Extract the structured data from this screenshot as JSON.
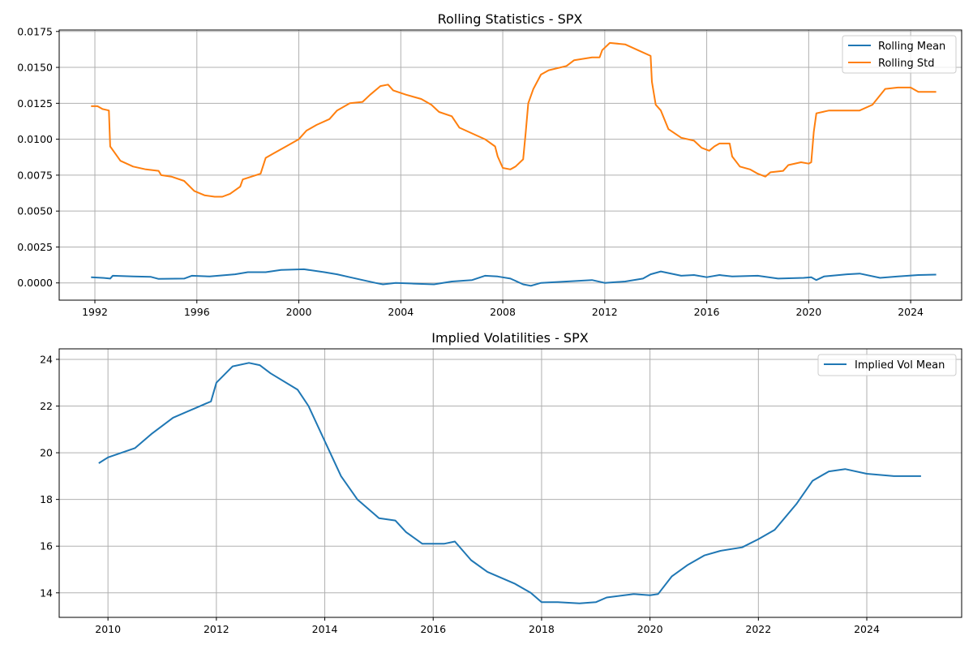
{
  "colors": {
    "blue": "#1f77b4",
    "orange": "#ff7f0e",
    "grid": "#b0b0b0"
  },
  "chart_data": [
    {
      "type": "line",
      "title": "Rolling Statistics - SPX",
      "xlabel": "",
      "ylabel": "",
      "xlim": [
        1990.6,
        2026.0
      ],
      "ylim": [
        -0.0012,
        0.0176
      ],
      "xticks": [
        1992,
        1996,
        2000,
        2004,
        2008,
        2012,
        2016,
        2020,
        2024
      ],
      "xtick_labels": [
        "1992",
        "1996",
        "2000",
        "2004",
        "2008",
        "2012",
        "2016",
        "2020",
        "2024"
      ],
      "yticks": [
        0.0,
        0.0025,
        0.005,
        0.0075,
        0.01,
        0.0125,
        0.015,
        0.0175
      ],
      "ytick_labels": [
        "0.0000",
        "0.0025",
        "0.0050",
        "0.0075",
        "0.0100",
        "0.0125",
        "0.0150",
        "0.0175"
      ],
      "grid": true,
      "legend_position": "top-right",
      "series": [
        {
          "name": "Rolling Mean",
          "color": "#1f77b4",
          "points": [
            [
              1991.85,
              0.0004
            ],
            [
              1992.3,
              0.00035
            ],
            [
              1992.6,
              0.0003
            ],
            [
              1992.7,
              0.0005
            ],
            [
              1993.5,
              0.00045
            ],
            [
              1994.2,
              0.00042
            ],
            [
              1994.5,
              0.00028
            ],
            [
              1995.5,
              0.0003
            ],
            [
              1995.8,
              0.0005
            ],
            [
              1996.5,
              0.00045
            ],
            [
              1997.5,
              0.0006
            ],
            [
              1998.0,
              0.00075
            ],
            [
              1998.7,
              0.00075
            ],
            [
              1999.3,
              0.0009
            ],
            [
              2000.2,
              0.00095
            ],
            [
              2001.0,
              0.00075
            ],
            [
              2001.5,
              0.0006
            ],
            [
              2002.0,
              0.0004
            ],
            [
              2002.5,
              0.0002
            ],
            [
              2003.0,
              0.0
            ],
            [
              2003.3,
              -0.0001
            ],
            [
              2003.8,
              0.0
            ],
            [
              2004.5,
              -5e-05
            ],
            [
              2005.3,
              -0.0001
            ],
            [
              2006.0,
              0.0001
            ],
            [
              2006.8,
              0.0002
            ],
            [
              2007.3,
              0.0005
            ],
            [
              2007.8,
              0.00045
            ],
            [
              2008.3,
              0.0003
            ],
            [
              2008.8,
              -0.0001
            ],
            [
              2009.1,
              -0.0002
            ],
            [
              2009.5,
              0.0
            ],
            [
              2010.5,
              0.0001
            ],
            [
              2011.5,
              0.0002
            ],
            [
              2012.0,
              0.0
            ],
            [
              2012.8,
              0.0001
            ],
            [
              2013.5,
              0.0003
            ],
            [
              2013.8,
              0.0006
            ],
            [
              2014.2,
              0.0008
            ],
            [
              2015.0,
              0.0005
            ],
            [
              2015.5,
              0.00055
            ],
            [
              2016.0,
              0.0004
            ],
            [
              2016.5,
              0.00055
            ],
            [
              2017.0,
              0.00045
            ],
            [
              2018.0,
              0.0005
            ],
            [
              2018.8,
              0.0003
            ],
            [
              2019.8,
              0.00035
            ],
            [
              2020.1,
              0.0004
            ],
            [
              2020.3,
              0.0002
            ],
            [
              2020.6,
              0.00045
            ],
            [
              2021.5,
              0.0006
            ],
            [
              2022.0,
              0.00065
            ],
            [
              2022.8,
              0.00035
            ],
            [
              2023.5,
              0.00045
            ],
            [
              2024.3,
              0.00055
            ],
            [
              2025.0,
              0.00058
            ]
          ]
        },
        {
          "name": "Rolling Std",
          "color": "#ff7f0e",
          "points": [
            [
              1991.85,
              0.0123
            ],
            [
              1992.1,
              0.0123
            ],
            [
              1992.3,
              0.0121
            ],
            [
              1992.55,
              0.012
            ],
            [
              1992.6,
              0.0095
            ],
            [
              1992.8,
              0.009
            ],
            [
              1993.0,
              0.0085
            ],
            [
              1993.5,
              0.0081
            ],
            [
              1994.0,
              0.0079
            ],
            [
              1994.5,
              0.0078
            ],
            [
              1994.6,
              0.0075
            ],
            [
              1995.0,
              0.0074
            ],
            [
              1995.5,
              0.0071
            ],
            [
              1995.9,
              0.0064
            ],
            [
              1996.3,
              0.0061
            ],
            [
              1996.7,
              0.006
            ],
            [
              1997.0,
              0.006
            ],
            [
              1997.3,
              0.0062
            ],
            [
              1997.7,
              0.0067
            ],
            [
              1997.8,
              0.0072
            ],
            [
              1998.5,
              0.0076
            ],
            [
              1998.7,
              0.0087
            ],
            [
              1999.0,
              0.009
            ],
            [
              1999.5,
              0.0095
            ],
            [
              2000.0,
              0.01
            ],
            [
              2000.3,
              0.0106
            ],
            [
              2000.7,
              0.011
            ],
            [
              2001.2,
              0.0114
            ],
            [
              2001.5,
              0.012
            ],
            [
              2002.0,
              0.0125
            ],
            [
              2002.5,
              0.0126
            ],
            [
              2002.8,
              0.0131
            ],
            [
              2003.2,
              0.0137
            ],
            [
              2003.5,
              0.0138
            ],
            [
              2003.7,
              0.0134
            ],
            [
              2004.2,
              0.0131
            ],
            [
              2004.8,
              0.0128
            ],
            [
              2005.2,
              0.0124
            ],
            [
              2005.5,
              0.0119
            ],
            [
              2006.0,
              0.0116
            ],
            [
              2006.3,
              0.0108
            ],
            [
              2006.8,
              0.0104
            ],
            [
              2007.3,
              0.01
            ],
            [
              2007.7,
              0.0095
            ],
            [
              2007.8,
              0.0088
            ],
            [
              2008.0,
              0.008
            ],
            [
              2008.3,
              0.0079
            ],
            [
              2008.5,
              0.0081
            ],
            [
              2008.8,
              0.0086
            ],
            [
              2008.9,
              0.0105
            ],
            [
              2009.0,
              0.0125
            ],
            [
              2009.2,
              0.0135
            ],
            [
              2009.5,
              0.0145
            ],
            [
              2009.8,
              0.0148
            ],
            [
              2010.5,
              0.0151
            ],
            [
              2010.8,
              0.0155
            ],
            [
              2011.5,
              0.0157
            ],
            [
              2011.8,
              0.0157
            ],
            [
              2011.9,
              0.0162
            ],
            [
              2012.2,
              0.0167
            ],
            [
              2012.8,
              0.0166
            ],
            [
              2013.3,
              0.0162
            ],
            [
              2013.8,
              0.0158
            ],
            [
              2013.85,
              0.014
            ],
            [
              2014.0,
              0.0124
            ],
            [
              2014.2,
              0.012
            ],
            [
              2014.5,
              0.0107
            ],
            [
              2015.0,
              0.0101
            ],
            [
              2015.5,
              0.0099
            ],
            [
              2015.8,
              0.0094
            ],
            [
              2016.1,
              0.0092
            ],
            [
              2016.3,
              0.0095
            ],
            [
              2016.5,
              0.0097
            ],
            [
              2016.9,
              0.0097
            ],
            [
              2017.0,
              0.0088
            ],
            [
              2017.3,
              0.0081
            ],
            [
              2017.7,
              0.0079
            ],
            [
              2018.0,
              0.0076
            ],
            [
              2018.3,
              0.0074
            ],
            [
              2018.5,
              0.0077
            ],
            [
              2019.0,
              0.0078
            ],
            [
              2019.2,
              0.0082
            ],
            [
              2019.7,
              0.0084
            ],
            [
              2020.0,
              0.0083
            ],
            [
              2020.1,
              0.0084
            ],
            [
              2020.2,
              0.0105
            ],
            [
              2020.3,
              0.0118
            ],
            [
              2020.8,
              0.012
            ],
            [
              2021.5,
              0.012
            ],
            [
              2022.0,
              0.012
            ],
            [
              2022.5,
              0.0124
            ],
            [
              2023.0,
              0.0135
            ],
            [
              2023.5,
              0.0136
            ],
            [
              2024.0,
              0.0136
            ],
            [
              2024.3,
              0.0133
            ],
            [
              2024.8,
              0.0133
            ],
            [
              2025.0,
              0.0133
            ]
          ]
        }
      ]
    },
    {
      "type": "line",
      "title": "Implied Volatilities - SPX",
      "xlabel": "",
      "ylabel": "",
      "xlim": [
        2009.1,
        2025.75
      ],
      "ylim": [
        12.95,
        24.45
      ],
      "xticks": [
        2010,
        2012,
        2014,
        2016,
        2018,
        2020,
        2022,
        2024
      ],
      "xtick_labels": [
        "2010",
        "2012",
        "2014",
        "2016",
        "2018",
        "2020",
        "2022",
        "2024"
      ],
      "yticks": [
        14,
        16,
        18,
        20,
        22,
        24
      ],
      "ytick_labels": [
        "14",
        "16",
        "18",
        "20",
        "22",
        "24"
      ],
      "grid": true,
      "legend_position": "top-right",
      "series": [
        {
          "name": "Implied Vol Mean",
          "color": "#1f77b4",
          "points": [
            [
              2009.83,
              19.55
            ],
            [
              2010.0,
              19.8
            ],
            [
              2010.5,
              20.2
            ],
            [
              2010.8,
              20.8
            ],
            [
              2011.2,
              21.5
            ],
            [
              2011.6,
              21.9
            ],
            [
              2011.9,
              22.2
            ],
            [
              2012.0,
              23.0
            ],
            [
              2012.3,
              23.7
            ],
            [
              2012.6,
              23.85
            ],
            [
              2012.8,
              23.75
            ],
            [
              2013.0,
              23.4
            ],
            [
              2013.5,
              22.7
            ],
            [
              2013.7,
              22.0
            ],
            [
              2014.0,
              20.5
            ],
            [
              2014.3,
              19.0
            ],
            [
              2014.6,
              18.0
            ],
            [
              2015.0,
              17.2
            ],
            [
              2015.3,
              17.1
            ],
            [
              2015.5,
              16.6
            ],
            [
              2015.8,
              16.1
            ],
            [
              2016.2,
              16.1
            ],
            [
              2016.4,
              16.2
            ],
            [
              2016.7,
              15.4
            ],
            [
              2017.0,
              14.9
            ],
            [
              2017.5,
              14.4
            ],
            [
              2017.8,
              14.0
            ],
            [
              2018.0,
              13.6
            ],
            [
              2018.3,
              13.6
            ],
            [
              2018.7,
              13.55
            ],
            [
              2019.0,
              13.6
            ],
            [
              2019.2,
              13.8
            ],
            [
              2019.7,
              13.95
            ],
            [
              2020.0,
              13.9
            ],
            [
              2020.15,
              13.95
            ],
            [
              2020.4,
              14.7
            ],
            [
              2020.7,
              15.2
            ],
            [
              2021.0,
              15.6
            ],
            [
              2021.3,
              15.8
            ],
            [
              2021.7,
              15.95
            ],
            [
              2022.0,
              16.3
            ],
            [
              2022.3,
              16.7
            ],
            [
              2022.7,
              17.8
            ],
            [
              2023.0,
              18.8
            ],
            [
              2023.3,
              19.2
            ],
            [
              2023.6,
              19.3
            ],
            [
              2024.0,
              19.1
            ],
            [
              2024.5,
              19.0
            ],
            [
              2025.0,
              19.0
            ]
          ]
        }
      ]
    }
  ]
}
